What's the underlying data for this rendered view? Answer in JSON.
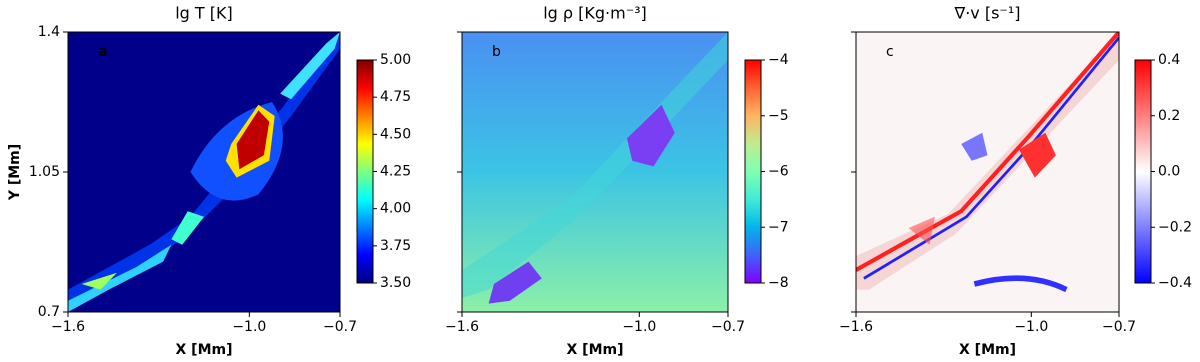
{
  "chart_data": [
    {
      "type": "heatmap",
      "title": "lg T [K]",
      "panel_label": "a",
      "xlabel": "X [Mm]",
      "ylabel": "Y [Mm]",
      "xlim": [
        -1.6,
        -0.7
      ],
      "xticks": [
        {
          "value": -1.6,
          "label": "−1.6"
        },
        {
          "value": -1.0,
          "label": "−1.0"
        },
        {
          "value": -0.7,
          "label": "−0.7"
        }
      ],
      "ylim": [
        0.7,
        1.4
      ],
      "yticks": [
        0.7,
        1.05,
        1.4
      ],
      "colorbar": {
        "lim": [
          3.5,
          5.0
        ],
        "ticks": [
          {
            "value": 3.5,
            "label": "3.50"
          },
          3.75,
          {
            "value": 4.0,
            "label": "4.00"
          },
          4.25,
          {
            "value": 4.5,
            "label": "4.50"
          },
          4.75,
          {
            "value": 5.0,
            "label": "5.00"
          }
        ],
        "colormap": [
          "#00007f",
          "#0000ff",
          "#007fff",
          "#00ffff",
          "#7fff7f",
          "#ffff00",
          "#ff7f00",
          "#ff0000",
          "#7f0000"
        ]
      }
    },
    {
      "type": "heatmap",
      "title": "lg ρ [Kg·m⁻³]",
      "panel_label": "b",
      "xlabel": "X [Mm]",
      "xlim": [
        -1.6,
        -0.7
      ],
      "xticks": [
        {
          "value": -1.6,
          "label": "−1.6"
        },
        {
          "value": -1.0,
          "label": "−1.0"
        },
        {
          "value": -0.7,
          "label": "−0.7"
        }
      ],
      "ylim": [
        0.7,
        1.4
      ],
      "yticks": [
        0.7,
        1.05,
        1.4
      ],
      "colorbar": {
        "lim": [
          -8,
          -4
        ],
        "ticks": [
          {
            "value": -8,
            "label": "−8"
          },
          {
            "value": -7,
            "label": "−7"
          },
          {
            "value": -6,
            "label": "−6"
          },
          {
            "value": -5,
            "label": "−5"
          },
          {
            "value": -4,
            "label": "−4"
          }
        ],
        "colormap": [
          "#8000ff",
          "#4062fa",
          "#00b5eb",
          "#40ecd4",
          "#80ffb4",
          "#c0eb8d",
          "#ffb462",
          "#ff6232",
          "#ff0000"
        ]
      }
    },
    {
      "type": "heatmap",
      "title": "∇·v [s⁻¹]",
      "panel_label": "c",
      "xlabel": "X [Mm]",
      "xlim": [
        -1.6,
        -0.7
      ],
      "xticks": [
        {
          "value": -1.6,
          "label": "−1.6"
        },
        {
          "value": -1.0,
          "label": "−1.0"
        },
        {
          "value": -0.7,
          "label": "−0.7"
        }
      ],
      "ylim": [
        0.7,
        1.4
      ],
      "yticks": [
        0.7,
        1.05,
        1.4
      ],
      "colorbar": {
        "lim": [
          -0.4,
          0.4
        ],
        "ticks": [
          {
            "value": -0.4,
            "label": "−0.4"
          },
          {
            "value": -0.2,
            "label": "−0.2"
          },
          {
            "value": 0.0,
            "label": "0.0"
          },
          0.2,
          0.4
        ],
        "colormap": [
          "#0000ff",
          "#ffffff",
          "#ff0000"
        ]
      }
    }
  ]
}
